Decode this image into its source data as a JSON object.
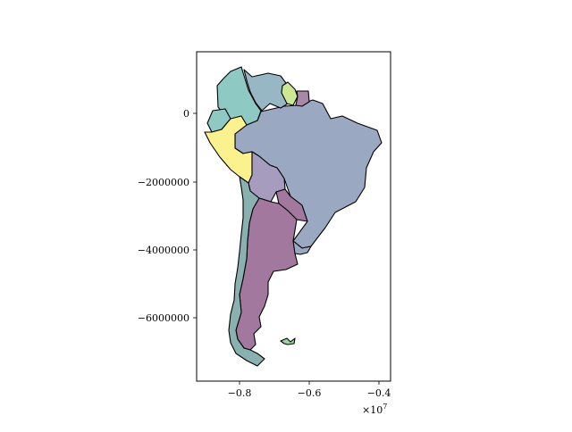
{
  "map": {
    "axes": {
      "y_ticks": [
        "0",
        "−2000000",
        "−4000000",
        "−6000000"
      ],
      "x_ticks": [
        "−0.8",
        "−0.6",
        "−0.4"
      ],
      "x_offset_base": "×10",
      "x_offset_exp": "7"
    },
    "colors": {
      "venezuela": "#97b7c5",
      "colombia": "#8ec9c4",
      "ecuador": "#8ec9c4",
      "peru": "#fbf18f",
      "guyana": "#cde793",
      "suriname": "#a788a8",
      "brazil": "#9aa8c1",
      "bolivia": "#a69cbe",
      "paraguay": "#a3789f",
      "argentina": "#a3789f",
      "chile": "#88b1b0",
      "uruguay": "#9aa8c1",
      "falklands": "#9ed29f"
    }
  }
}
